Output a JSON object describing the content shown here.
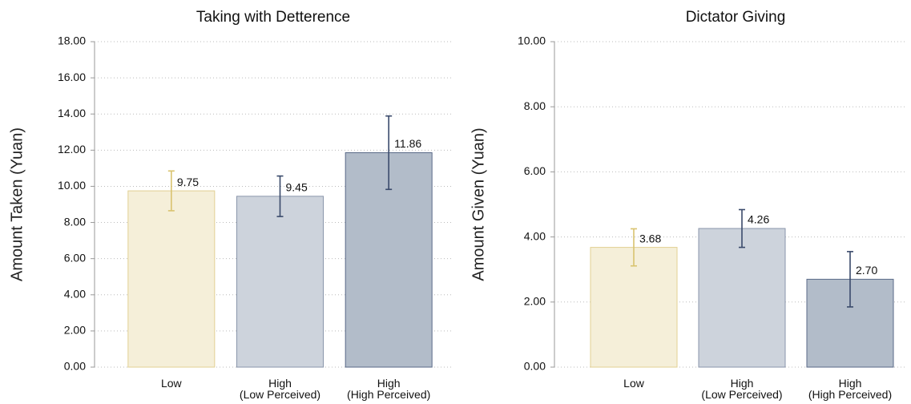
{
  "chart_data": [
    {
      "type": "bar",
      "title": "Taking with Detterence",
      "ylabel": "Amount Taken (Yuan)",
      "categories": [
        "Low",
        "High\n(Low Perceived)",
        "High\n(High Perceived)"
      ],
      "values": [
        9.75,
        9.45,
        11.86
      ],
      "value_labels": [
        "9.75",
        "9.45",
        "11.86"
      ],
      "errors": [
        1.1,
        1.12,
        2.03
      ],
      "colors": [
        "#f5efd9",
        "#cdd3dc",
        "#b2bcc9"
      ],
      "edge_colors": [
        "#e2d092",
        "#8a96ab",
        "#5a6a88"
      ],
      "error_colors": [
        "#d9c36f",
        "#3a4a6b",
        "#3a4a6b"
      ],
      "ylim": [
        0,
        18
      ],
      "yticks": [
        {
          "value": 0,
          "label": "0.00"
        },
        {
          "value": 2,
          "label": "2.00"
        },
        {
          "value": 4,
          "label": "4.00"
        },
        {
          "value": 6,
          "label": "6.00"
        },
        {
          "value": 8,
          "label": "8.00"
        },
        {
          "value": 10,
          "label": "10.00"
        },
        {
          "value": 12,
          "label": "12.00"
        },
        {
          "value": 14,
          "label": "14.00"
        },
        {
          "value": 16,
          "label": "16.00"
        },
        {
          "value": 18,
          "label": "18.00"
        }
      ],
      "grid": true
    },
    {
      "type": "bar",
      "title": "Dictator Giving",
      "ylabel": "Amount Given (Yuan)",
      "categories": [
        "Low",
        "High\n(Low Perceived)",
        "High\n(High Perceived)"
      ],
      "values": [
        3.68,
        4.26,
        2.7
      ],
      "value_labels": [
        "3.68",
        "4.26",
        "2.70"
      ],
      "errors": [
        0.57,
        0.58,
        0.85
      ],
      "colors": [
        "#f5efd9",
        "#cdd3dc",
        "#b2bcc9"
      ],
      "edge_colors": [
        "#e2d092",
        "#8a96ab",
        "#5a6a88"
      ],
      "error_colors": [
        "#d9c36f",
        "#3a4a6b",
        "#3a4a6b"
      ],
      "ylim": [
        0,
        10
      ],
      "yticks": [
        {
          "value": 0,
          "label": "0.00"
        },
        {
          "value": 2,
          "label": "2.00"
        },
        {
          "value": 4,
          "label": "4.00"
        },
        {
          "value": 6,
          "label": "6.00"
        },
        {
          "value": 8,
          "label": "8.00"
        },
        {
          "value": 10,
          "label": "10.00"
        }
      ],
      "grid": true
    }
  ]
}
